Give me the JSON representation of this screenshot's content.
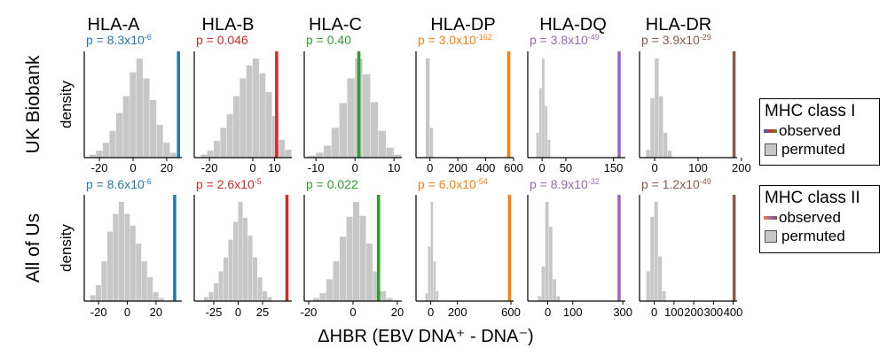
{
  "columns": [
    "HLA-A",
    "HLA-B",
    "HLA-C",
    "HLA-DP",
    "HLA-DQ",
    "HLA-DR"
  ],
  "row_labels": [
    "UK Biobank",
    "All of Us"
  ],
  "ylabel": "density",
  "xlabel": "ΔHBR (EBV DNA⁺ - DNA⁻)",
  "colors": {
    "A": "#1f77b4",
    "B": "#d62728",
    "C": "#2ca02c",
    "DP": "#ff7f0e",
    "DQ": "#9467bd",
    "DR": "#8c564b",
    "hist": "#c7c7c7"
  },
  "legend": [
    {
      "title": "MHC class I",
      "observed": "observed",
      "permuted": "permuted",
      "gradient": [
        "#1f77b4",
        "#d62728",
        "#2ca02c"
      ]
    },
    {
      "title": "MHC class II",
      "observed": "observed",
      "permuted": "permuted",
      "gradient": [
        "#ff7f0e",
        "#9467bd",
        "#8c564b"
      ]
    }
  ],
  "chart_data": [
    {
      "type": "histogram",
      "dataset": "UK Biobank",
      "gene": "HLA-A",
      "color": "#1f77b4",
      "p_base": "p = 8.3x10",
      "p_exp": "-6",
      "observed": 27,
      "xlim": [
        -29,
        29
      ],
      "ticks": [
        -20,
        0,
        20
      ],
      "bins": [
        [
          -26,
          -22,
          0.03
        ],
        [
          -22,
          -18,
          0.07
        ],
        [
          -18,
          -14,
          0.15
        ],
        [
          -14,
          -10,
          0.27
        ],
        [
          -10,
          -6,
          0.45
        ],
        [
          -6,
          -2,
          0.62
        ],
        [
          -2,
          2,
          0.86
        ],
        [
          2,
          6,
          1.0
        ],
        [
          6,
          10,
          0.8
        ],
        [
          10,
          14,
          0.58
        ],
        [
          14,
          18,
          0.33
        ],
        [
          18,
          22,
          0.15
        ],
        [
          22,
          26,
          0.05
        ]
      ]
    },
    {
      "type": "histogram",
      "dataset": "UK Biobank",
      "gene": "HLA-B",
      "color": "#d62728",
      "p_base": "p = 0.046",
      "p_exp": "",
      "observed": 11,
      "xlim": [
        -27,
        18
      ],
      "ticks": [
        -20,
        0,
        10
      ],
      "bins": [
        [
          -24,
          -21,
          0.03
        ],
        [
          -21,
          -18,
          0.07
        ],
        [
          -18,
          -15,
          0.17
        ],
        [
          -15,
          -12,
          0.3
        ],
        [
          -12,
          -9,
          0.44
        ],
        [
          -9,
          -6,
          0.62
        ],
        [
          -6,
          -3,
          0.8
        ],
        [
          -3,
          0,
          0.93
        ],
        [
          0,
          3,
          1.0
        ],
        [
          3,
          6,
          0.85
        ],
        [
          6,
          9,
          0.66
        ],
        [
          9,
          12,
          0.42
        ],
        [
          12,
          15,
          0.18
        ],
        [
          15,
          18,
          0.08
        ]
      ]
    },
    {
      "type": "histogram",
      "dataset": "UK Biobank",
      "gene": "HLA-C",
      "color": "#2ca02c",
      "p_base": "p = 0.40",
      "p_exp": "",
      "observed": 1,
      "xlim": [
        -13,
        12
      ],
      "ticks": [
        -10,
        0,
        10
      ],
      "bins": [
        [
          -12,
          -10,
          0.02
        ],
        [
          -10,
          -8,
          0.05
        ],
        [
          -8,
          -6,
          0.12
        ],
        [
          -6,
          -4,
          0.3
        ],
        [
          -4,
          -2,
          0.55
        ],
        [
          -2,
          0,
          0.8
        ],
        [
          0,
          2,
          1.0
        ],
        [
          2,
          4,
          0.84
        ],
        [
          4,
          6,
          0.56
        ],
        [
          6,
          8,
          0.27
        ],
        [
          8,
          10,
          0.1
        ],
        [
          10,
          12,
          0.03
        ]
      ]
    },
    {
      "type": "histogram",
      "dataset": "UK Biobank",
      "gene": "HLA-DP",
      "color": "#ff7f0e",
      "p_base": "p = 3.0x10",
      "p_exp": "-162",
      "observed": 565,
      "xlim": [
        -100,
        600
      ],
      "ticks": [
        0,
        200,
        400,
        600
      ],
      "bins": [
        [
          -30,
          0,
          1.0
        ],
        [
          0,
          25,
          0.3
        ]
      ]
    },
    {
      "type": "histogram",
      "dataset": "UK Biobank",
      "gene": "HLA-DQ",
      "color": "#9467bd",
      "p_base": "p = 3.8x10",
      "p_exp": "-49",
      "observed": 162,
      "xlim": [
        -30,
        175
      ],
      "ticks": [
        0,
        50,
        150
      ],
      "bins": [
        [
          -12,
          -6,
          0.25
        ],
        [
          -6,
          0,
          0.7
        ],
        [
          0,
          6,
          1.0
        ],
        [
          6,
          12,
          0.52
        ],
        [
          12,
          18,
          0.18
        ]
      ]
    },
    {
      "type": "histogram",
      "dataset": "UK Biobank",
      "gene": "HLA-DR",
      "color": "#8c564b",
      "p_base": "p = 3.9x10",
      "p_exp": "-29",
      "observed": 183,
      "xlim": [
        -35,
        190
      ],
      "ticks": [
        0,
        100,
        200
      ],
      "bins": [
        [
          -20,
          -10,
          0.08
        ],
        [
          -10,
          0,
          0.6
        ],
        [
          0,
          10,
          1.0
        ],
        [
          10,
          20,
          0.62
        ],
        [
          20,
          30,
          0.25
        ],
        [
          30,
          40,
          0.07
        ]
      ]
    },
    {
      "type": "histogram",
      "dataset": "All of Us",
      "gene": "HLA-A",
      "color": "#1f77b4",
      "p_base": "p = 8.6x10",
      "p_exp": "-6",
      "observed": 33,
      "xlim": [
        -30,
        38
      ],
      "ticks": [
        -20,
        0,
        20
      ],
      "bins": [
        [
          -26,
          -22,
          0.06
        ],
        [
          -22,
          -18,
          0.16
        ],
        [
          -18,
          -14,
          0.4
        ],
        [
          -14,
          -10,
          0.7
        ],
        [
          -10,
          -6,
          0.88
        ],
        [
          -6,
          -2,
          1.0
        ],
        [
          -2,
          2,
          0.88
        ],
        [
          2,
          6,
          0.76
        ],
        [
          6,
          10,
          0.58
        ],
        [
          10,
          14,
          0.4
        ],
        [
          14,
          18,
          0.24
        ],
        [
          18,
          22,
          0.09
        ],
        [
          22,
          26,
          0.03
        ]
      ]
    },
    {
      "type": "histogram",
      "dataset": "All of Us",
      "gene": "HLA-B",
      "color": "#d62728",
      "p_base": "p = 2.6x10",
      "p_exp": "-5",
      "observed": 50,
      "xlim": [
        -45,
        55
      ],
      "ticks": [
        -25,
        0,
        25
      ],
      "bins": [
        [
          -35,
          -30,
          0.04
        ],
        [
          -30,
          -25,
          0.09
        ],
        [
          -25,
          -20,
          0.18
        ],
        [
          -20,
          -15,
          0.3
        ],
        [
          -15,
          -10,
          0.44
        ],
        [
          -10,
          -5,
          0.62
        ],
        [
          -5,
          0,
          0.8
        ],
        [
          0,
          5,
          1.0
        ],
        [
          5,
          10,
          0.84
        ],
        [
          10,
          15,
          0.66
        ],
        [
          15,
          20,
          0.44
        ],
        [
          20,
          25,
          0.24
        ],
        [
          25,
          30,
          0.1
        ],
        [
          30,
          35,
          0.04
        ]
      ]
    },
    {
      "type": "histogram",
      "dataset": "All of Us",
      "gene": "HLA-C",
      "color": "#2ca02c",
      "p_base": "p = 0.022",
      "p_exp": "",
      "observed": 11.5,
      "xlim": [
        -22,
        22
      ],
      "ticks": [
        -20,
        0,
        20
      ],
      "bins": [
        [
          -18,
          -15,
          0.03
        ],
        [
          -15,
          -12,
          0.08
        ],
        [
          -12,
          -9,
          0.22
        ],
        [
          -9,
          -6,
          0.4
        ],
        [
          -6,
          -3,
          0.65
        ],
        [
          -3,
          0,
          0.85
        ],
        [
          0,
          3,
          1.0
        ],
        [
          3,
          6,
          0.86
        ],
        [
          6,
          9,
          0.58
        ],
        [
          9,
          12,
          0.3
        ],
        [
          12,
          15,
          0.1
        ],
        [
          15,
          18,
          0.03
        ]
      ]
    },
    {
      "type": "histogram",
      "dataset": "All of Us",
      "gene": "HLA-DP",
      "color": "#ff7f0e",
      "p_base": "p = 6.0x10",
      "p_exp": "-54",
      "observed": 590,
      "xlim": [
        -110,
        620
      ],
      "ticks": [
        0,
        200,
        600
      ],
      "bins": [
        [
          -40,
          -20,
          0.08
        ],
        [
          -20,
          0,
          0.55
        ],
        [
          0,
          20,
          1.0
        ],
        [
          20,
          40,
          0.4
        ],
        [
          40,
          60,
          0.1
        ]
      ]
    },
    {
      "type": "histogram",
      "dataset": "All of Us",
      "gene": "HLA-DQ",
      "color": "#9467bd",
      "p_base": "p = 8.9x10",
      "p_exp": "-32",
      "observed": 285,
      "xlim": [
        -80,
        310
      ],
      "ticks": [
        0,
        100,
        300
      ],
      "bins": [
        [
          -40,
          -25,
          0.05
        ],
        [
          -25,
          -10,
          0.35
        ],
        [
          -10,
          5,
          1.0
        ],
        [
          5,
          20,
          0.75
        ],
        [
          20,
          35,
          0.22
        ],
        [
          35,
          50,
          0.05
        ]
      ]
    },
    {
      "type": "histogram",
      "dataset": "All of Us",
      "gene": "HLA-DR",
      "color": "#8c564b",
      "p_base": "p = 1.2x10",
      "p_exp": "-49",
      "observed": 405,
      "xlim": [
        -75,
        420
      ],
      "ticks": [
        0,
        100,
        200,
        300,
        400
      ],
      "bins": [
        [
          -40,
          -20,
          0.3
        ],
        [
          -20,
          0,
          0.85
        ],
        [
          0,
          20,
          1.0
        ],
        [
          20,
          40,
          0.45
        ],
        [
          40,
          60,
          0.1
        ]
      ]
    }
  ]
}
